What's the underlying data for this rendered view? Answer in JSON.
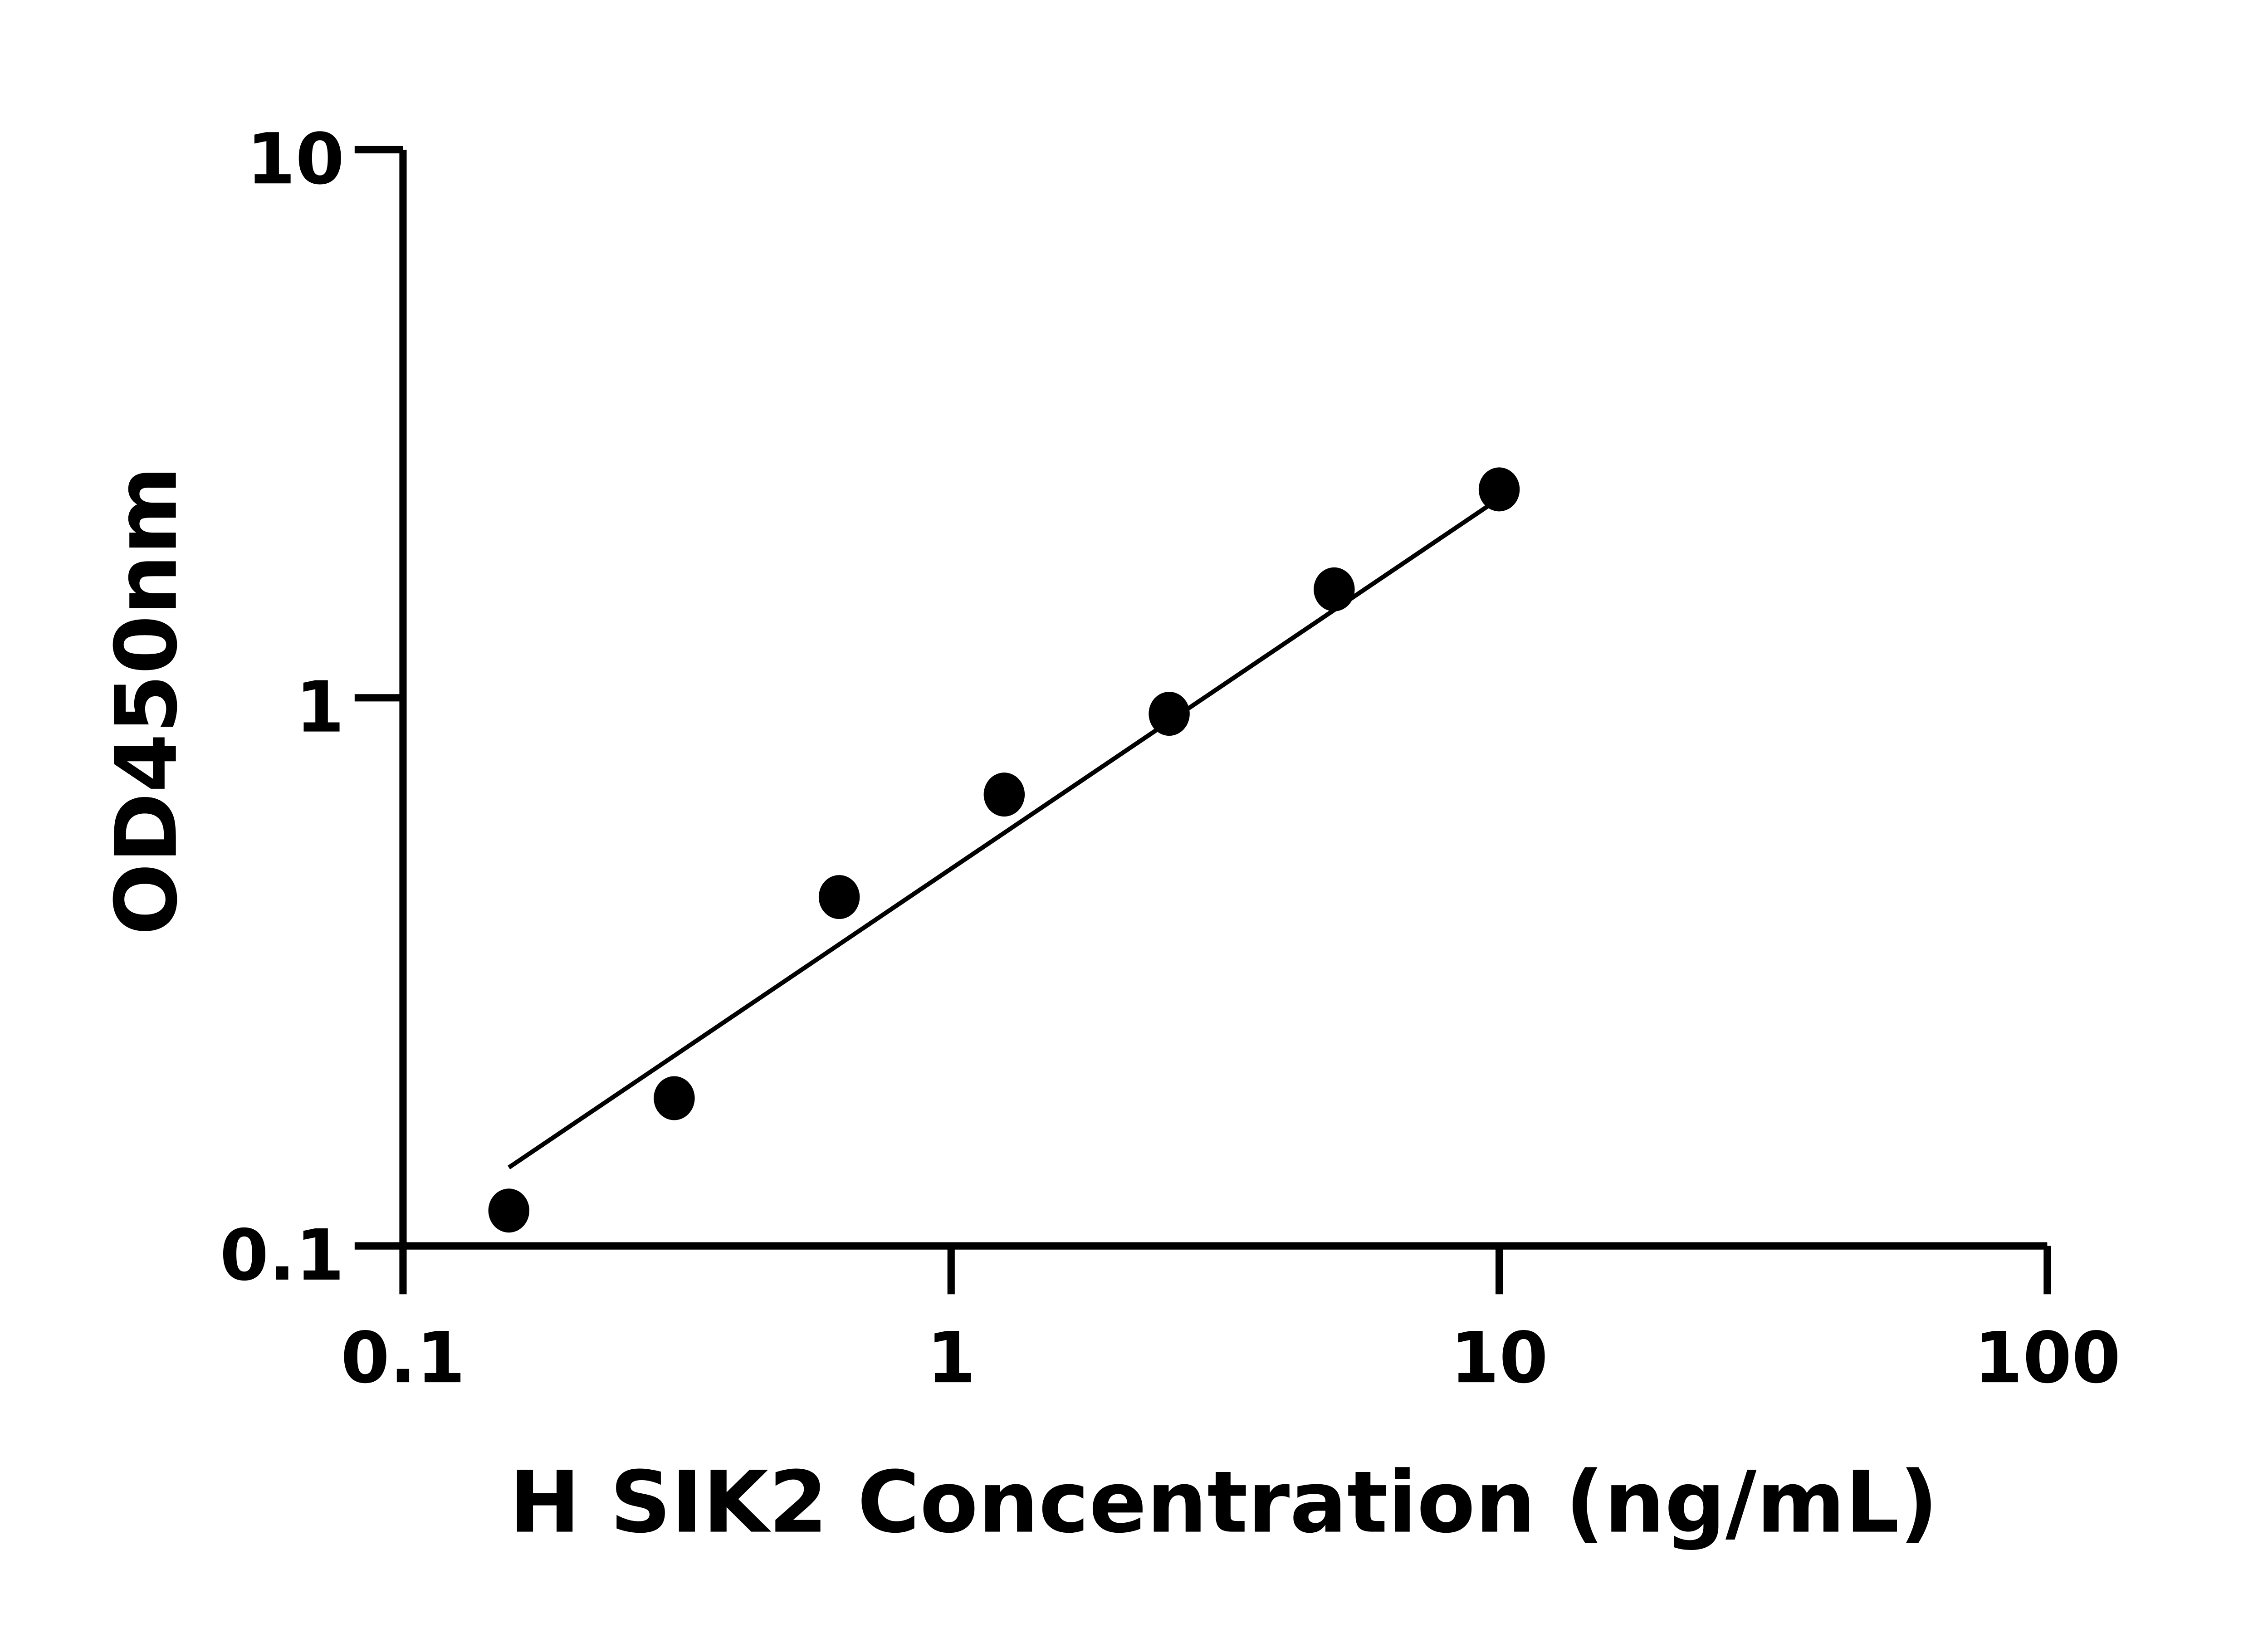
{
  "chart_data": {
    "type": "scatter",
    "title": "",
    "xlabel": "H SIK2 Concentration (ng/mL)",
    "ylabel": "OD450nm",
    "xscale": "log",
    "yscale": "log",
    "xlim": [
      0.1,
      100
    ],
    "ylim": [
      0.1,
      10
    ],
    "xticks": [
      "0.1",
      "1",
      "10",
      "100"
    ],
    "yticks": [
      "0.1",
      "1",
      "10"
    ],
    "grid": false,
    "legend": "none",
    "colors": {
      "points": "#000000",
      "line": "#000000",
      "axes": "#000000"
    },
    "points": {
      "x": [
        0.156,
        0.3125,
        0.625,
        1.25,
        2.5,
        5,
        10
      ],
      "y": [
        0.116,
        0.186,
        0.433,
        0.666,
        0.935,
        1.577,
        2.4
      ]
    },
    "fit_line": {
      "x": [
        0.156,
        10
      ],
      "y": [
        0.139,
        2.31
      ]
    }
  }
}
